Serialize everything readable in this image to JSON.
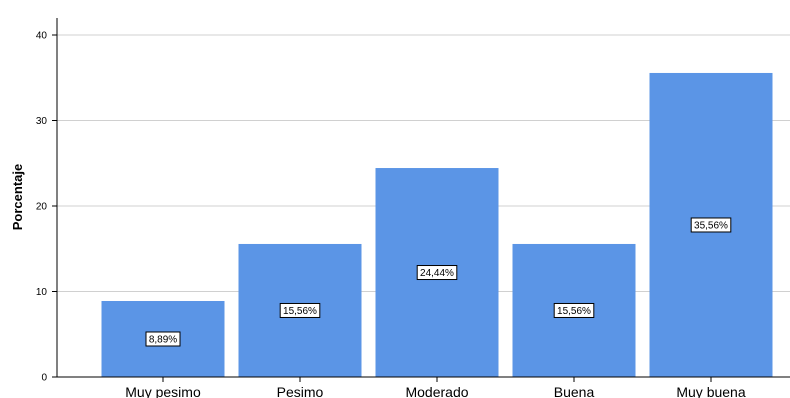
{
  "chart_data": {
    "type": "bar",
    "categories": [
      "Muy pesimo",
      "Pesimo",
      "Moderado",
      "Buena",
      "Muy buena"
    ],
    "values": [
      8.89,
      15.56,
      24.44,
      15.56,
      35.56
    ],
    "data_labels": [
      "8,89%",
      "15,56%",
      "24,44%",
      "15,56%",
      "35,56%"
    ],
    "ylabel": "Porcentaje",
    "xlabel": "",
    "ylim": [
      0,
      40
    ],
    "yticks": [
      0,
      10,
      20,
      30,
      40
    ],
    "grid": true,
    "bar_color": "#5b95e6"
  }
}
